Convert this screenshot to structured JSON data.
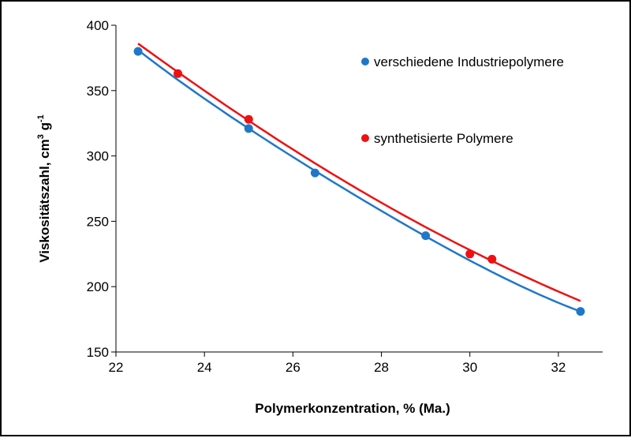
{
  "chart_data": {
    "type": "scatter",
    "title": "",
    "xlabel": "Polymerkonzentration, % (Ma.)",
    "ylabel_main": "Viskositätszahl, cm",
    "ylabel_sup1": "3",
    "ylabel_mid": "  g",
    "ylabel_sup2": "-1",
    "xlim": [
      22,
      33
    ],
    "ylim": [
      150,
      400
    ],
    "xticks": [
      "22",
      "24",
      "26",
      "28",
      "30",
      "32"
    ],
    "yticks": [
      "150",
      "200",
      "250",
      "300",
      "350",
      "400"
    ],
    "grid": false,
    "legend_position": "top-right",
    "series": [
      {
        "name": "verschiedene Industriepolymere",
        "color": "#1f77c9",
        "points": [
          [
            22.5,
            380
          ],
          [
            25.0,
            321
          ],
          [
            26.5,
            287
          ],
          [
            29.0,
            239
          ],
          [
            32.5,
            181
          ]
        ],
        "trend": [
          [
            22.5,
            381
          ],
          [
            25.0,
            321
          ],
          [
            27.5,
            268
          ],
          [
            30.0,
            220
          ],
          [
            32.5,
            181
          ]
        ]
      },
      {
        "name": "synthetisierte Polymere",
        "color": "#ee1111",
        "points": [
          [
            23.4,
            363
          ],
          [
            25.0,
            328
          ],
          [
            30.0,
            225
          ],
          [
            30.5,
            221
          ]
        ],
        "trend": [
          [
            22.5,
            386
          ],
          [
            25.0,
            327
          ],
          [
            27.5,
            274
          ],
          [
            30.0,
            228
          ],
          [
            32.5,
            189
          ]
        ]
      }
    ]
  }
}
